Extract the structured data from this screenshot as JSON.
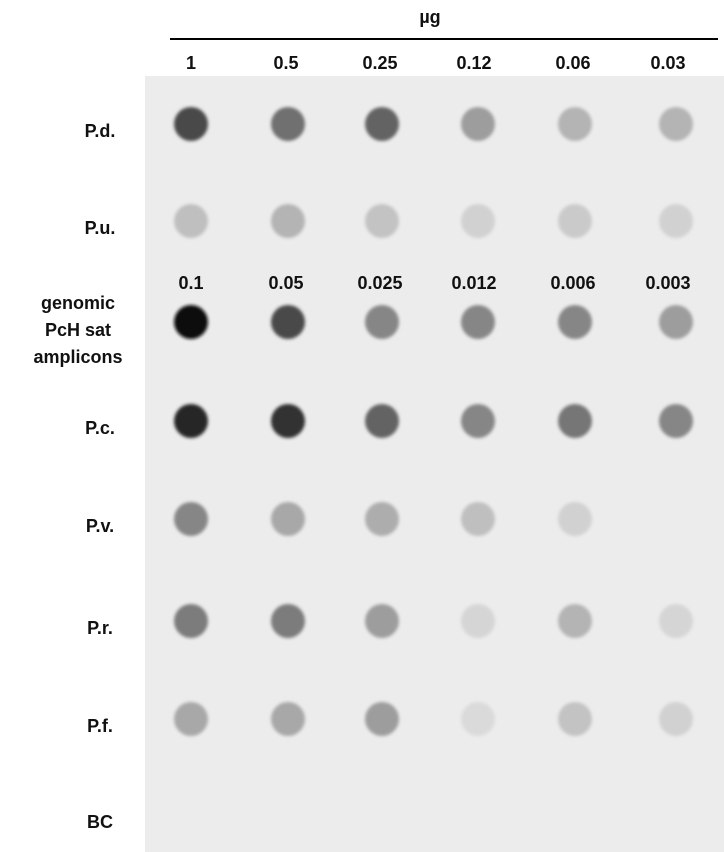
{
  "header": {
    "unit": "µg",
    "columns": [
      "1",
      "0.5",
      "0.25",
      "0.12",
      "0.06",
      "0.03"
    ]
  },
  "rows": [
    {
      "label": "P.d."
    },
    {
      "label": "P.u."
    },
    {
      "label_lines": [
        "genomic",
        "PcH sat",
        "amplicons"
      ],
      "columns": [
        "0.1",
        "0.05",
        "0.025",
        "0.012",
        "0.006",
        "0.003"
      ]
    },
    {
      "label": "P.c."
    },
    {
      "label": "P.v."
    },
    {
      "label": "P.r."
    },
    {
      "label": "P.f."
    },
    {
      "label": "BC"
    }
  ]
}
